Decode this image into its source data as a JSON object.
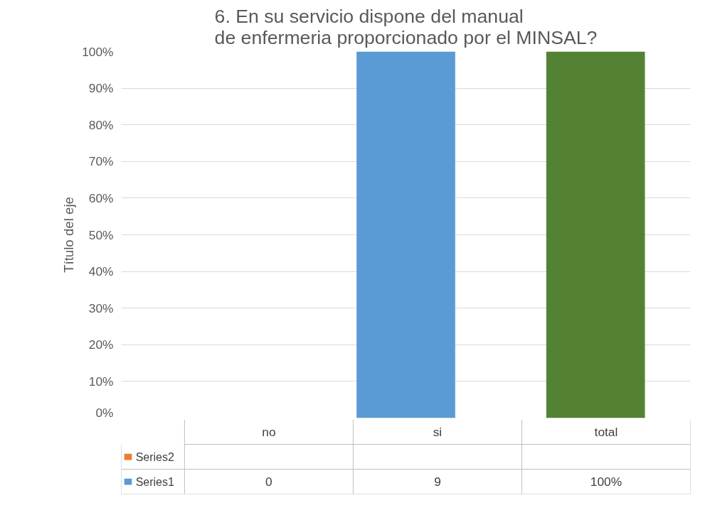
{
  "chart_data": {
    "type": "bar",
    "title": "6. En su servicio dispone del manual de enfermeria proporcionado por el MINSAL?",
    "ylabel": "Título del eje",
    "categories": [
      "no",
      "si",
      "total"
    ],
    "series": [
      {
        "name": "Series2",
        "color": "#ed7d31",
        "values": [
          null,
          null,
          null
        ],
        "value_labels": [
          null,
          null,
          null
        ]
      },
      {
        "name": "Series1",
        "color": "#5b9bd5",
        "colors": [
          "#5b9bd5",
          "#5b9bd5",
          "#548235"
        ],
        "values": [
          0,
          1,
          1
        ],
        "value_labels": [
          "0",
          null,
          "100%"
        ]
      }
    ],
    "ylim": [
      0,
      1
    ],
    "yticks": [
      {
        "value": 0,
        "label": "0%"
      },
      {
        "value": 0.1,
        "label": "10%"
      },
      {
        "value": 0.2,
        "label": "20%"
      },
      {
        "value": 0.3,
        "label": "30%"
      },
      {
        "value": 0.4,
        "label": "40%"
      },
      {
        "value": 0.5,
        "label": "50%"
      },
      {
        "value": 0.6,
        "label": "60%"
      },
      {
        "value": 0.7,
        "label": "70%"
      },
      {
        "value": 0.8,
        "label": "80%"
      },
      {
        "value": 0.9,
        "label": "90%"
      },
      {
        "value": 1,
        "label": "100%"
      }
    ],
    "annotations": [
      "9"
    ],
    "grid": "y"
  }
}
